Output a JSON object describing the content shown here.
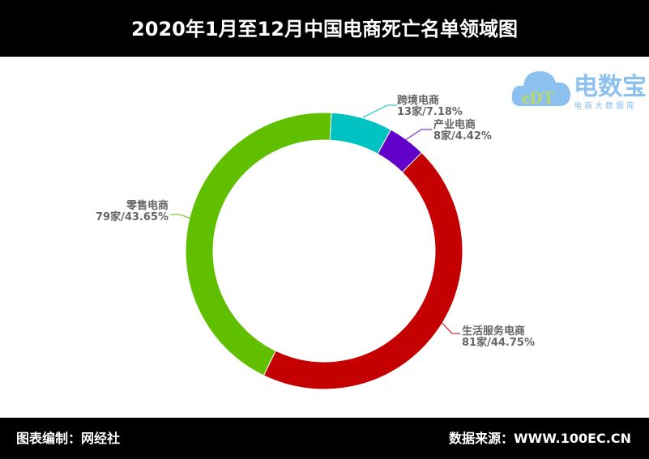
{
  "header": {
    "title": "2020年1月至12月中国电商死亡名单领域图"
  },
  "footer": {
    "left": "图表编制：网经社",
    "right": "数据来源：WWW.100EC.CN"
  },
  "logo": {
    "name": "电数宝",
    "subtitle": "电商大数据库",
    "mark": "eDT"
  },
  "chart_data": {
    "type": "pie",
    "title": "2020年1月至12月中国电商死亡名单领域图",
    "donut": true,
    "slices": [
      {
        "name": "跨境电商",
        "count": 13,
        "label": "13家/7.18%",
        "percent": 7.18,
        "color": "#00c2c2"
      },
      {
        "name": "产业电商",
        "count": 8,
        "label": "8家/4.42%",
        "percent": 4.42,
        "color": "#6000c8"
      },
      {
        "name": "生活服务电商",
        "count": 81,
        "label": "81家/44.75%",
        "percent": 44.75,
        "color": "#c40000"
      },
      {
        "name": "零售电商",
        "count": 79,
        "label": "79家/43.65%",
        "percent": 43.65,
        "color": "#60c000"
      }
    ]
  }
}
